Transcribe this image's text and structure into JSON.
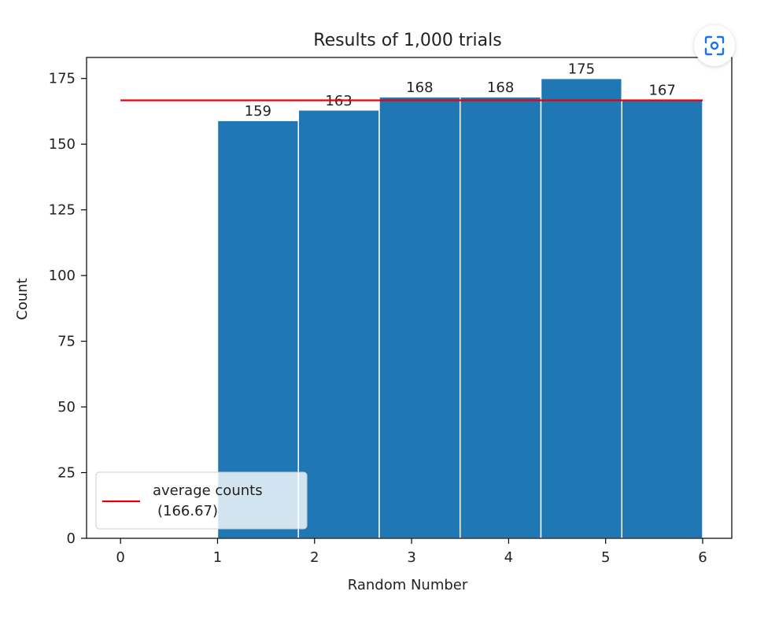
{
  "colors": {
    "bar": "#1f77b4",
    "bar_edge": "#ffffff",
    "average_line": "#e8000b",
    "axis": "#000000",
    "button_icon": "#1a73e8"
  },
  "chart_data": {
    "type": "bar",
    "title": "Results of 1,000 trials",
    "xlabel": "Random Number",
    "ylabel": "Count",
    "xlim": [
      -0.35,
      6.3
    ],
    "ylim": [
      0,
      183
    ],
    "xticks": [
      "0",
      "1",
      "2",
      "3",
      "4",
      "5",
      "6"
    ],
    "yticks": [
      "0",
      "25",
      "50",
      "75",
      "100",
      "125",
      "150",
      "175"
    ],
    "bins": [
      {
        "x0": 1.0,
        "x1": 1.8333,
        "value": 159,
        "label": "159"
      },
      {
        "x0": 1.8333,
        "x1": 2.6667,
        "value": 163,
        "label": "163"
      },
      {
        "x0": 2.6667,
        "x1": 3.5,
        "value": 168,
        "label": "168"
      },
      {
        "x0": 3.5,
        "x1": 4.3333,
        "value": 168,
        "label": "168"
      },
      {
        "x0": 4.3333,
        "x1": 5.1667,
        "value": 175,
        "label": "175"
      },
      {
        "x0": 5.1667,
        "x1": 6.0,
        "value": 167,
        "label": "167"
      }
    ],
    "average": {
      "value": 166.67,
      "x_start": 0,
      "x_end": 6,
      "legend_line1": "average counts",
      "legend_line2": "(166.67)"
    },
    "legend_position": "lower left",
    "grid": false
  },
  "toolbar": {
    "scan_icon": "lens-scan-icon"
  }
}
